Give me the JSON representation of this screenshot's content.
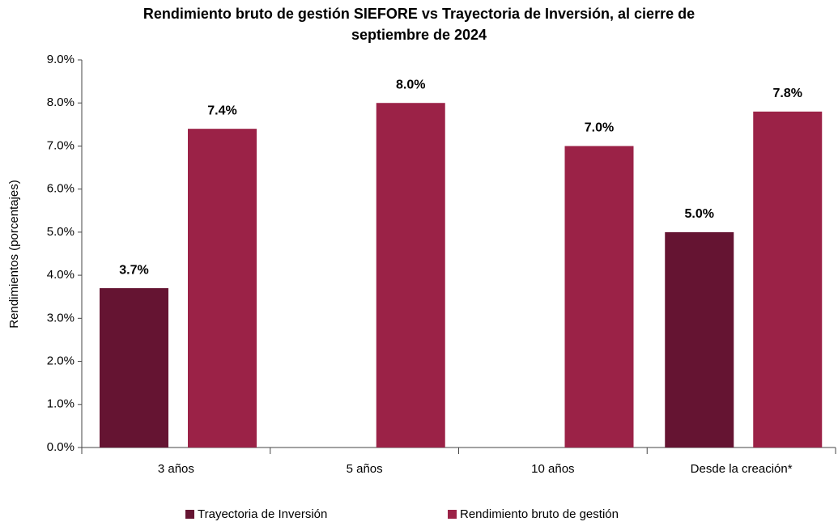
{
  "chart_data": {
    "type": "bar",
    "title": "Rendimiento bruto de gestión SIEFORE vs Trayectoria de Inversión, al cierre de septiembre de 2024",
    "y_label": "Rendimientos (porcentajes)",
    "categories": [
      "3 años",
      "5 años",
      "10 años",
      "Desde la creación*"
    ],
    "series": [
      {
        "name": "Trayectoria de Inversión",
        "color": "#651432",
        "values": [
          3.7,
          null,
          null,
          5.0
        ],
        "value_labels": [
          "3.7%",
          null,
          null,
          "5.0%"
        ]
      },
      {
        "name": "Rendimiento bruto de gestión",
        "color": "#9b2247",
        "values": [
          7.4,
          8.0,
          7.0,
          7.8
        ],
        "value_labels": [
          "7.4%",
          "8.0%",
          "7.0%",
          "7.8%"
        ]
      }
    ],
    "ylim": [
      0,
      9
    ],
    "yticks": [
      {
        "value": 0,
        "label": "0.0%"
      },
      {
        "value": 1,
        "label": "1.0%"
      },
      {
        "value": 2,
        "label": "2.0%"
      },
      {
        "value": 3,
        "label": "3.0%"
      },
      {
        "value": 4,
        "label": "4.0%"
      },
      {
        "value": 5,
        "label": "5.0%"
      },
      {
        "value": 6,
        "label": "6.0%"
      },
      {
        "value": 7,
        "label": "7.0%"
      },
      {
        "value": 8,
        "label": "8.0%"
      },
      {
        "value": 9,
        "label": "9.0%"
      }
    ],
    "grid": false,
    "legend": "bottom"
  }
}
